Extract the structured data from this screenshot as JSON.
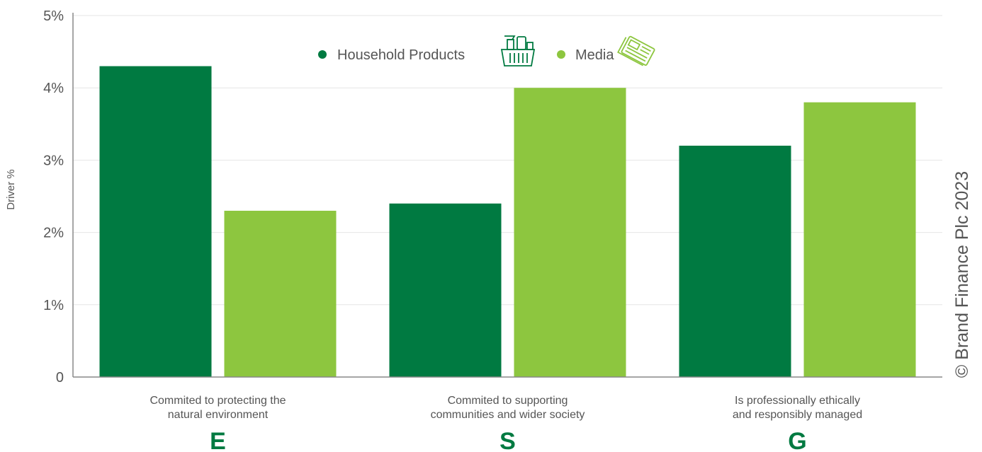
{
  "colors": {
    "household": "#007a41",
    "media": "#8dc63f",
    "letters": "#007a41",
    "grid": "#e6e6e6",
    "axis": "#888888"
  },
  "chart_data": {
    "type": "bar",
    "ylabel": "Driver %",
    "ylim": [
      0,
      5
    ],
    "yticks": [
      "0",
      "1%",
      "2%",
      "3%",
      "4%",
      "5%"
    ],
    "grid": true,
    "legend_position": "top-center",
    "categories": [
      [
        "Commited to protecting the",
        "natural environment"
      ],
      [
        "Commited to supporting",
        "communities and wider society"
      ],
      [
        "Is professionally ethically",
        "and responsibly managed"
      ]
    ],
    "category_letters": [
      "E",
      "S",
      "G"
    ],
    "series": [
      {
        "name": "Household Products",
        "icon": "cleaning-basket-icon",
        "values": [
          4.3,
          2.4,
          3.2
        ]
      },
      {
        "name": "Media",
        "icon": "newspaper-icon",
        "values": [
          2.3,
          4.0,
          3.8
        ]
      }
    ]
  },
  "copyright": "© Brand Finance Plc 2023"
}
